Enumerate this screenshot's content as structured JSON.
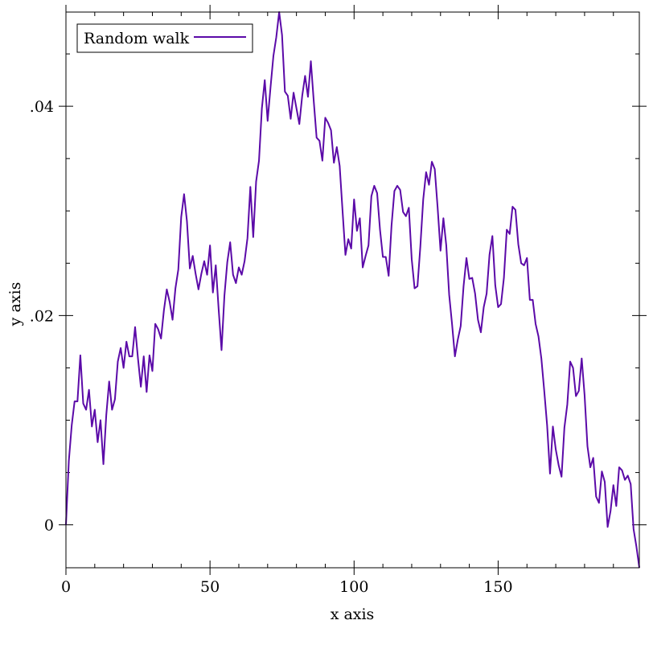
{
  "chart_data": {
    "type": "line",
    "title": "",
    "xlabel": "x axis",
    "ylabel": "y axis",
    "xlim": [
      0,
      199
    ],
    "ylim": [
      -0.0041,
      0.049
    ],
    "x_major_ticks": [
      0,
      50,
      100,
      150
    ],
    "x_tick_labels": [
      "0",
      "50",
      "100",
      "150"
    ],
    "x_minor_step": 10,
    "y_major_ticks": [
      0,
      0.02,
      0.04
    ],
    "y_tick_labels": [
      "0",
      ".02",
      ".04"
    ],
    "y_minor_step": 0.005,
    "grid": false,
    "legend_position": "top-left",
    "series": [
      {
        "name": "Random walk",
        "color": "#5b0aa8",
        "x_start": 0,
        "x_step": 1,
        "values": [
          0,
          0.0061,
          0.0095,
          0.0118,
          0.0118,
          0.0162,
          0.0116,
          0.011,
          0.0129,
          0.0094,
          0.011,
          0.0079,
          0.01,
          0.0058,
          0.0105,
          0.0137,
          0.011,
          0.012,
          0.0156,
          0.0169,
          0.015,
          0.0175,
          0.0161,
          0.0161,
          0.0189,
          0.0159,
          0.0132,
          0.0161,
          0.0127,
          0.0162,
          0.0147,
          0.0192,
          0.0187,
          0.0178,
          0.0205,
          0.0225,
          0.0213,
          0.0196,
          0.0226,
          0.0244,
          0.0294,
          0.0316,
          0.029,
          0.0245,
          0.0257,
          0.024,
          0.0225,
          0.024,
          0.0252,
          0.0239,
          0.0267,
          0.0222,
          0.0248,
          0.0206,
          0.0167,
          0.0219,
          0.0251,
          0.027,
          0.0239,
          0.0231,
          0.0246,
          0.0239,
          0.0252,
          0.0274,
          0.0323,
          0.0275,
          0.0328,
          0.0348,
          0.0398,
          0.0425,
          0.0386,
          0.0418,
          0.0448,
          0.0466,
          0.049,
          0.0468,
          0.0414,
          0.041,
          0.0388,
          0.0413,
          0.0398,
          0.0383,
          0.041,
          0.0429,
          0.0409,
          0.0443,
          0.0405,
          0.037,
          0.0367,
          0.0348,
          0.0389,
          0.0384,
          0.0377,
          0.0346,
          0.0361,
          0.0343,
          0.03,
          0.0258,
          0.0273,
          0.0264,
          0.0311,
          0.0281,
          0.0293,
          0.0246,
          0.0257,
          0.0267,
          0.0314,
          0.0324,
          0.0317,
          0.0282,
          0.0256,
          0.0256,
          0.0238,
          0.0286,
          0.0319,
          0.0324,
          0.032,
          0.0299,
          0.0295,
          0.0303,
          0.0254,
          0.0226,
          0.0228,
          0.0266,
          0.0311,
          0.0337,
          0.0325,
          0.0347,
          0.034,
          0.0303,
          0.0262,
          0.0293,
          0.0267,
          0.022,
          0.0192,
          0.0161,
          0.0177,
          0.019,
          0.0228,
          0.0255,
          0.0235,
          0.0236,
          0.0221,
          0.0196,
          0.0184,
          0.0208,
          0.0221,
          0.0258,
          0.0276,
          0.0229,
          0.0208,
          0.0211,
          0.0236,
          0.0282,
          0.0278,
          0.0304,
          0.0301,
          0.0268,
          0.025,
          0.0248,
          0.0255,
          0.0215,
          0.0215,
          0.0192,
          0.018,
          0.0159,
          0.0128,
          0.0095,
          0.0049,
          0.0094,
          0.0072,
          0.0057,
          0.0046,
          0.0093,
          0.0115,
          0.0156,
          0.015,
          0.0123,
          0.0128,
          0.0159,
          0.0124,
          0.0075,
          0.0055,
          0.0064,
          0.0027,
          0.0021,
          0.0051,
          0.0041,
          -0.0002,
          0.0013,
          0.0038,
          0.0018,
          0.0055,
          0.0052,
          0.0043,
          0.0047,
          0.0039,
          -0.0004,
          -0.0021,
          -0.0041
        ]
      }
    ]
  }
}
